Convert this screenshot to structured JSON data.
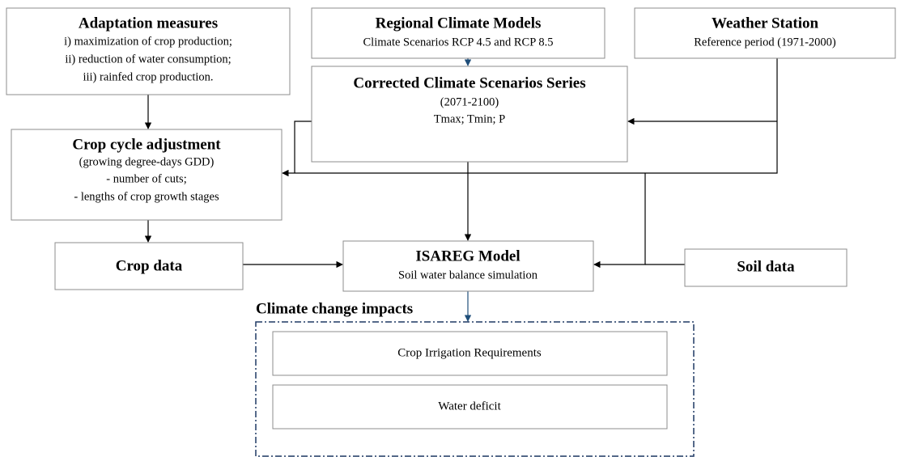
{
  "nodes": [
    {
      "title": "Adaptation measures",
      "lines": [
        "i) maximization of crop production;",
        "ii) reduction of water consumption;",
        "iii) rainfed crop production."
      ]
    },
    {
      "title": "Regional Climate Models",
      "lines": [
        "Climate Scenarios RCP 4.5 and RCP 8.5"
      ]
    },
    {
      "title": "Weather Station",
      "lines": [
        "Reference period (1971-2000)"
      ]
    },
    {
      "title": "Corrected Climate Scenarios Series",
      "lines": [
        "(2071-2100)",
        "Tmax; Tmin; P"
      ]
    },
    {
      "title": "Crop cycle adjustment",
      "lines": [
        "(growing degree-days GDD)",
        "- number of cuts;",
        "- lengths of crop growth stages"
      ]
    },
    {
      "title": "Crop data"
    },
    {
      "title": "ISAREG Model",
      "lines": [
        "Soil water balance simulation"
      ]
    },
    {
      "title": "Soil data"
    }
  ],
  "impacts": {
    "title": "Climate change impacts",
    "items": [
      "Crop Irrigation Requirements",
      "Water deficit"
    ]
  }
}
